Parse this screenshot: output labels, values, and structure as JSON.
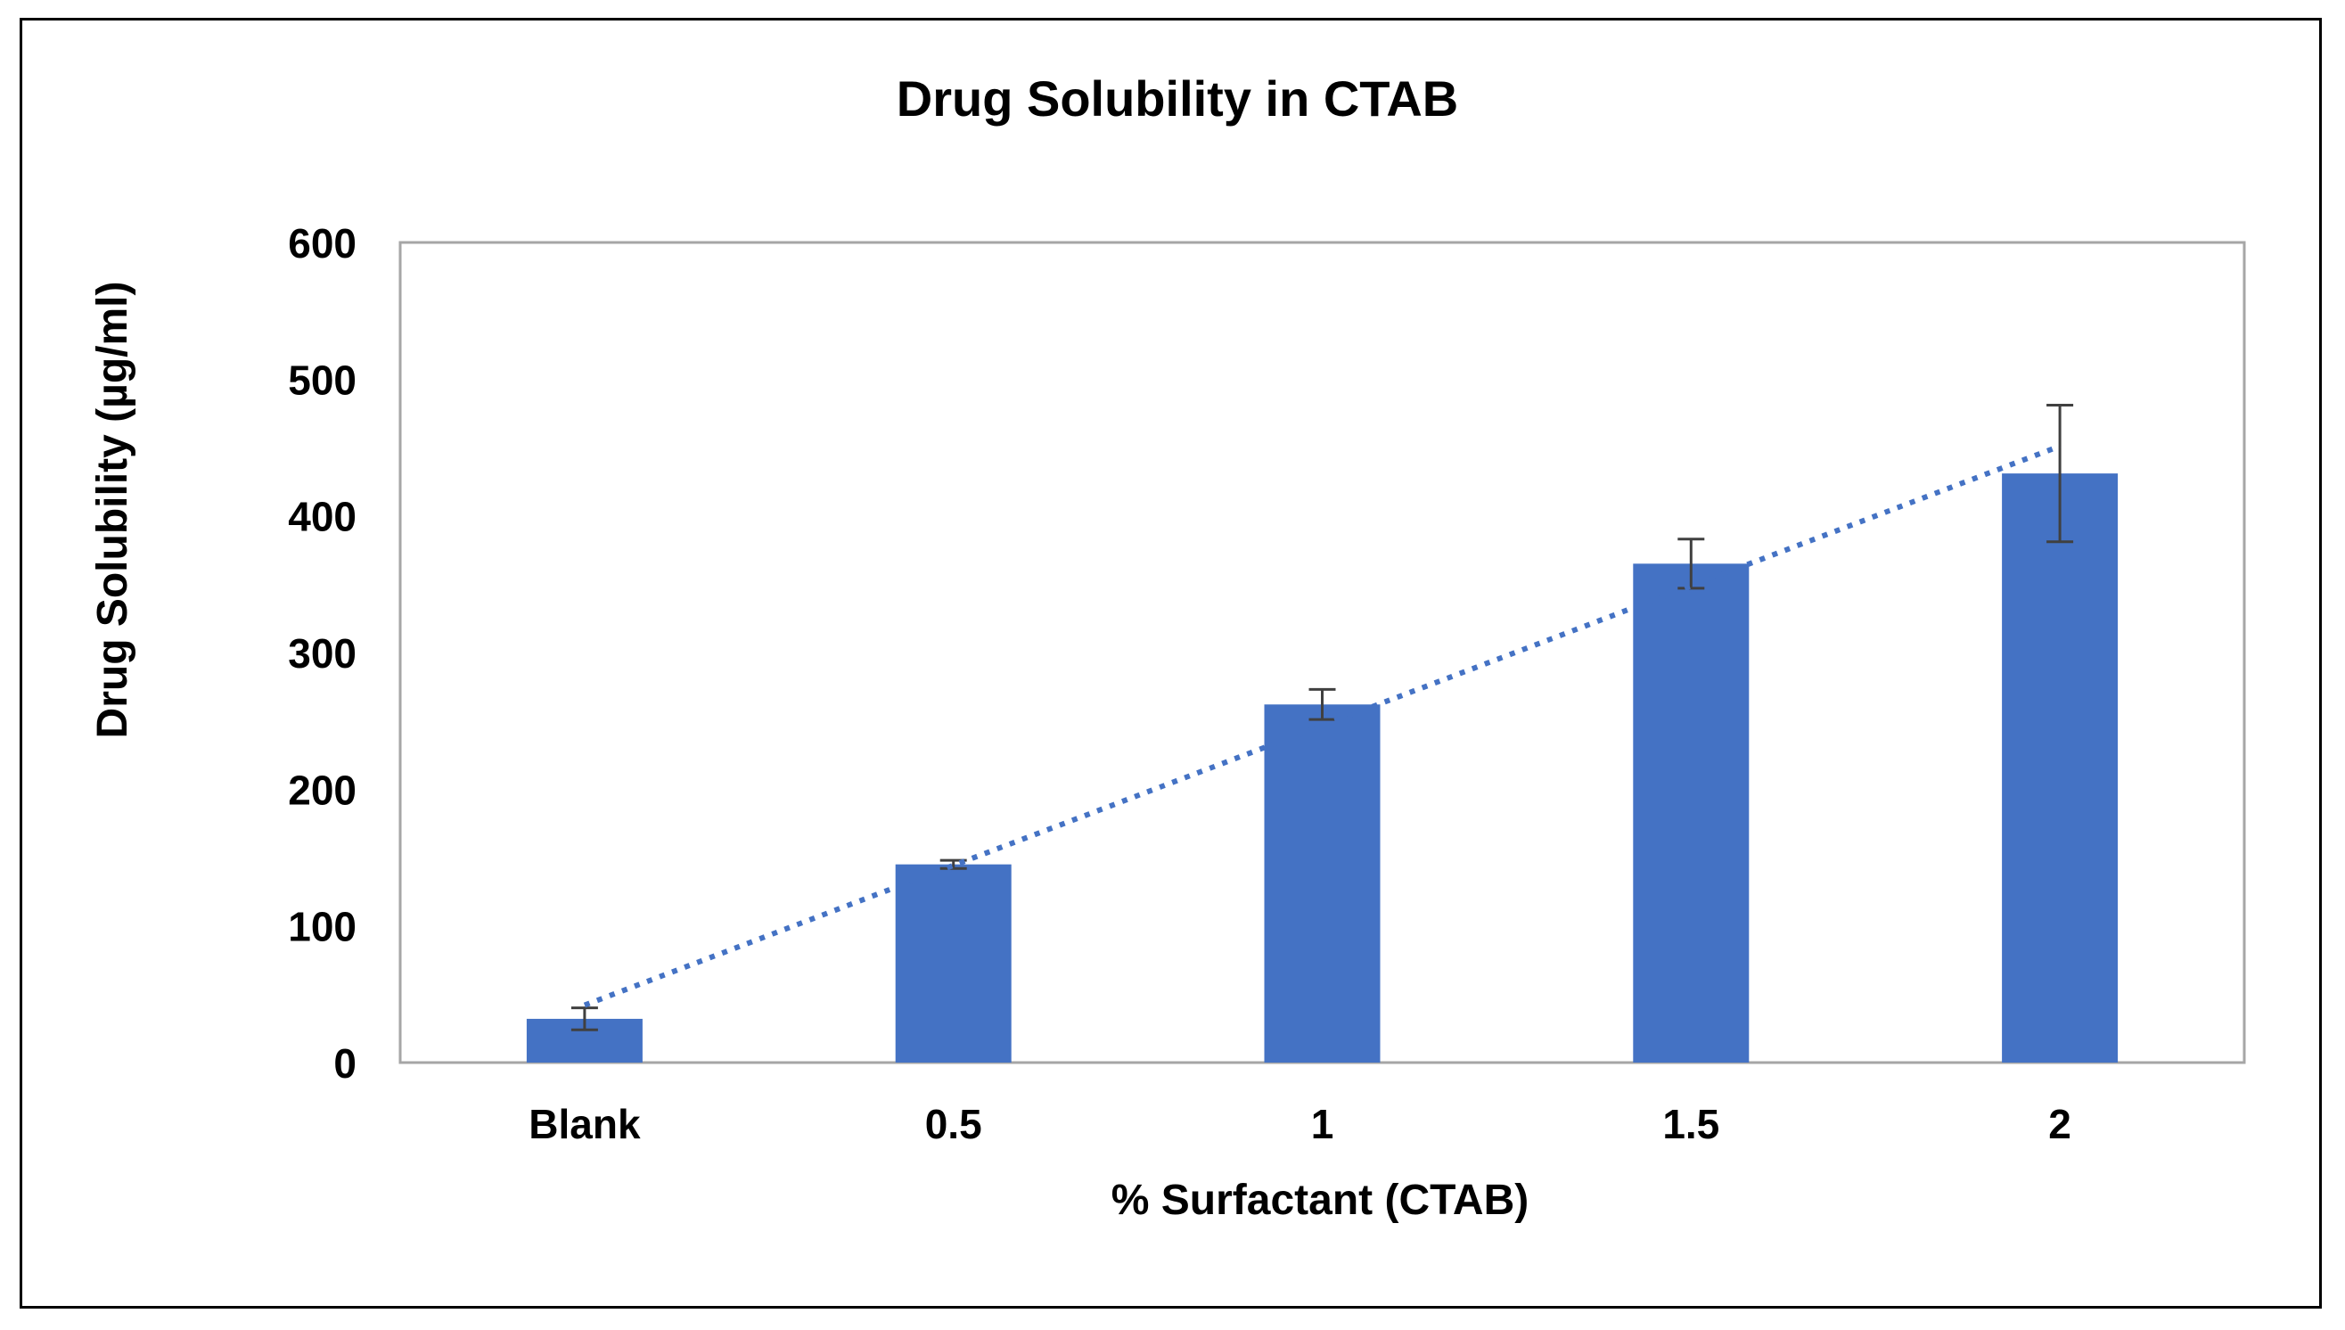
{
  "chart_data": {
    "type": "bar",
    "title": "Drug Solubility in CTAB",
    "xlabel": "% Surfactant (CTAB)",
    "ylabel": "Drug Solubility (µg/ml)",
    "categories": [
      "Blank",
      "0.5",
      "1",
      "1.5",
      "2"
    ],
    "series": [
      {
        "name": "Drug Solubility",
        "values": [
          32,
          145,
          262,
          365,
          431
        ],
        "errors": [
          8,
          3,
          11,
          18,
          50
        ],
        "color": "#4472C4"
      }
    ],
    "trendline": {
      "type": "linear",
      "style": "dotted",
      "color": "#4472C4",
      "start_value": 42,
      "end_value": 451
    },
    "ylim": [
      0,
      600
    ],
    "yticks": [
      "0",
      "100",
      "200",
      "300",
      "400",
      "500",
      "600"
    ],
    "grid": false,
    "legend": "none",
    "colors": {
      "axis": "#A6A6A6",
      "error_bar": "#404040",
      "frame": "#000000"
    }
  }
}
